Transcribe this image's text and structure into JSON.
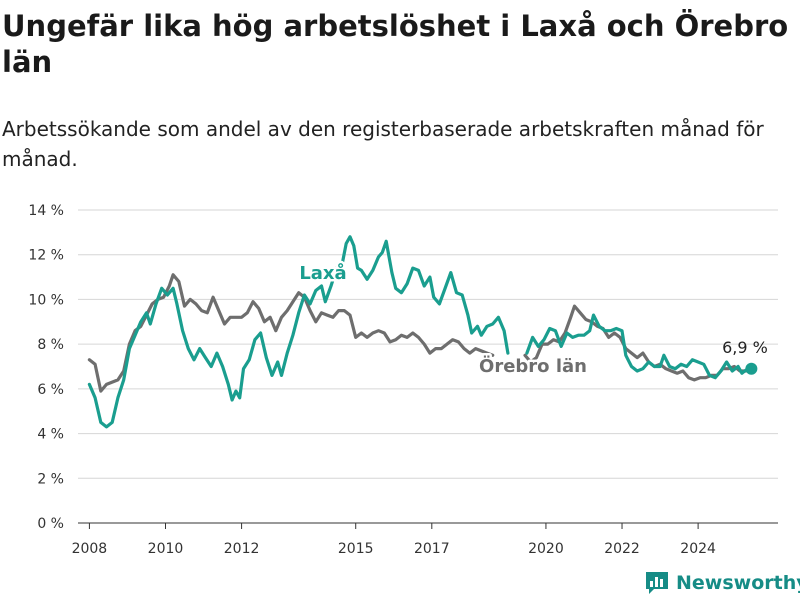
{
  "chart_data": {
    "type": "line",
    "title": "Ungefär lika hög arbetslöshet i Laxå och Örebro län",
    "subtitle": "Arbetssökande som andel av den registerbaserade arbetskraften månad för månad.",
    "xlabel": "",
    "ylabel": "",
    "ylim": [
      0,
      14
    ],
    "yticks": [
      0,
      2,
      4,
      6,
      8,
      10,
      12,
      14
    ],
    "ytick_labels": [
      "0 %",
      "2 %",
      "4 %",
      "6 %",
      "8 %",
      "10 %",
      "12 %",
      "14 %"
    ],
    "xlim": [
      2007.7,
      2026.1
    ],
    "xticks": [
      2008,
      2010,
      2012,
      2015,
      2017,
      2020,
      2022,
      2024
    ],
    "xtick_labels": [
      "2008",
      "2010",
      "2012",
      "2015",
      "2017",
      "2020",
      "2022",
      "2024"
    ],
    "grid": true,
    "legend": "inline labels",
    "series": [
      {
        "name": "Laxå",
        "color": "#1a9e8f",
        "points": [
          [
            2008.0,
            6.2
          ],
          [
            2008.15,
            5.6
          ],
          [
            2008.3,
            4.5
          ],
          [
            2008.45,
            4.3
          ],
          [
            2008.6,
            4.5
          ],
          [
            2008.75,
            5.6
          ],
          [
            2008.9,
            6.4
          ],
          [
            2009.05,
            7.8
          ],
          [
            2009.2,
            8.4
          ],
          [
            2009.35,
            9.0
          ],
          [
            2009.5,
            9.4
          ],
          [
            2009.6,
            8.9
          ],
          [
            2009.75,
            9.8
          ],
          [
            2009.9,
            10.5
          ],
          [
            2010.05,
            10.2
          ],
          [
            2010.2,
            10.5
          ],
          [
            2010.3,
            9.8
          ],
          [
            2010.45,
            8.6
          ],
          [
            2010.6,
            7.8
          ],
          [
            2010.75,
            7.3
          ],
          [
            2010.9,
            7.8
          ],
          [
            2011.05,
            7.4
          ],
          [
            2011.2,
            7.0
          ],
          [
            2011.35,
            7.6
          ],
          [
            2011.5,
            7.0
          ],
          [
            2011.65,
            6.2
          ],
          [
            2011.75,
            5.5
          ],
          [
            2011.85,
            5.9
          ],
          [
            2011.95,
            5.6
          ],
          [
            2012.05,
            6.9
          ],
          [
            2012.2,
            7.3
          ],
          [
            2012.35,
            8.2
          ],
          [
            2012.5,
            8.5
          ],
          [
            2012.65,
            7.4
          ],
          [
            2012.8,
            6.6
          ],
          [
            2012.95,
            7.2
          ],
          [
            2013.05,
            6.6
          ],
          [
            2013.2,
            7.6
          ],
          [
            2013.35,
            8.4
          ],
          [
            2013.5,
            9.4
          ],
          [
            2013.65,
            10.2
          ],
          [
            2013.8,
            9.8
          ],
          [
            2013.95,
            10.4
          ],
          [
            2014.1,
            10.6
          ],
          [
            2014.2,
            9.9
          ],
          [
            2014.35,
            10.6
          ],
          [
            2014.5,
            11.4
          ],
          [
            2014.6,
            11.2
          ],
          [
            2014.75,
            12.5
          ],
          [
            2014.85,
            12.8
          ],
          [
            2014.95,
            12.4
          ],
          [
            2015.05,
            11.4
          ],
          [
            2015.15,
            11.3
          ],
          [
            2015.3,
            10.9
          ],
          [
            2015.45,
            11.3
          ],
          [
            2015.6,
            11.9
          ],
          [
            2015.7,
            12.1
          ],
          [
            2015.8,
            12.6
          ],
          [
            2015.95,
            11.2
          ],
          [
            2016.05,
            10.5
          ],
          [
            2016.2,
            10.3
          ],
          [
            2016.35,
            10.7
          ],
          [
            2016.5,
            11.4
          ],
          [
            2016.65,
            11.3
          ],
          [
            2016.8,
            10.6
          ],
          [
            2016.95,
            11.0
          ],
          [
            2017.05,
            10.1
          ],
          [
            2017.2,
            9.8
          ],
          [
            2017.35,
            10.5
          ],
          [
            2017.5,
            11.2
          ],
          [
            2017.65,
            10.3
          ],
          [
            2017.8,
            10.2
          ],
          [
            2017.95,
            9.3
          ],
          [
            2018.05,
            8.5
          ],
          [
            2018.2,
            8.8
          ],
          [
            2018.3,
            8.4
          ],
          [
            2018.45,
            8.8
          ],
          [
            2018.6,
            8.9
          ],
          [
            2018.75,
            9.2
          ],
          [
            2018.9,
            8.6
          ],
          [
            2019.0,
            7.6
          ],
          null,
          [
            2019.5,
            7.6
          ],
          [
            2019.65,
            8.3
          ],
          [
            2019.8,
            7.9
          ],
          [
            2019.95,
            8.2
          ],
          [
            2020.1,
            8.7
          ],
          [
            2020.25,
            8.6
          ],
          [
            2020.4,
            7.9
          ],
          [
            2020.55,
            8.5
          ],
          [
            2020.7,
            8.3
          ],
          [
            2020.85,
            8.4
          ],
          [
            2021.0,
            8.4
          ],
          [
            2021.15,
            8.6
          ],
          [
            2021.25,
            9.3
          ],
          [
            2021.4,
            8.8
          ],
          [
            2021.55,
            8.6
          ],
          [
            2021.7,
            8.6
          ],
          [
            2021.85,
            8.7
          ],
          [
            2022.0,
            8.6
          ],
          [
            2022.1,
            7.5
          ],
          [
            2022.25,
            7.0
          ],
          [
            2022.4,
            6.8
          ],
          [
            2022.55,
            6.9
          ],
          [
            2022.7,
            7.2
          ],
          [
            2022.85,
            7.0
          ],
          [
            2023.0,
            7.0
          ],
          [
            2023.1,
            7.5
          ],
          [
            2023.25,
            7.0
          ],
          [
            2023.4,
            6.9
          ],
          [
            2023.55,
            7.1
          ],
          [
            2023.7,
            7.0
          ],
          [
            2023.85,
            7.3
          ],
          [
            2024.0,
            7.2
          ],
          [
            2024.15,
            7.1
          ],
          [
            2024.3,
            6.6
          ],
          [
            2024.45,
            6.5
          ],
          [
            2024.6,
            6.8
          ],
          [
            2024.75,
            7.2
          ],
          [
            2024.9,
            6.8
          ],
          [
            2025.05,
            7.0
          ],
          [
            2025.15,
            6.7
          ],
          [
            2025.3,
            6.9
          ],
          [
            2025.4,
            6.9
          ]
        ]
      },
      {
        "name": "Örebro län",
        "color": "#6e6e6e",
        "points": [
          [
            2008.0,
            7.3
          ],
          [
            2008.15,
            7.1
          ],
          [
            2008.3,
            5.9
          ],
          [
            2008.45,
            6.2
          ],
          [
            2008.6,
            6.3
          ],
          [
            2008.75,
            6.4
          ],
          [
            2008.9,
            6.8
          ],
          [
            2009.05,
            8.0
          ],
          [
            2009.2,
            8.6
          ],
          [
            2009.35,
            8.8
          ],
          [
            2009.5,
            9.3
          ],
          [
            2009.65,
            9.8
          ],
          [
            2009.8,
            10.0
          ],
          [
            2009.95,
            10.1
          ],
          [
            2010.1,
            10.6
          ],
          [
            2010.2,
            11.1
          ],
          [
            2010.35,
            10.8
          ],
          [
            2010.5,
            9.7
          ],
          [
            2010.65,
            10.0
          ],
          [
            2010.8,
            9.8
          ],
          [
            2010.95,
            9.5
          ],
          [
            2011.1,
            9.4
          ],
          [
            2011.25,
            10.1
          ],
          [
            2011.4,
            9.5
          ],
          [
            2011.55,
            8.9
          ],
          [
            2011.7,
            9.2
          ],
          [
            2011.85,
            9.2
          ],
          [
            2012.0,
            9.2
          ],
          [
            2012.15,
            9.4
          ],
          [
            2012.3,
            9.9
          ],
          [
            2012.45,
            9.6
          ],
          [
            2012.6,
            9.0
          ],
          [
            2012.75,
            9.2
          ],
          [
            2012.9,
            8.6
          ],
          [
            2013.05,
            9.2
          ],
          [
            2013.2,
            9.5
          ],
          [
            2013.35,
            9.9
          ],
          [
            2013.5,
            10.3
          ],
          [
            2013.65,
            10.1
          ],
          [
            2013.8,
            9.5
          ],
          [
            2013.95,
            9.0
          ],
          [
            2014.1,
            9.4
          ],
          [
            2014.25,
            9.3
          ],
          [
            2014.4,
            9.2
          ],
          [
            2014.55,
            9.5
          ],
          [
            2014.7,
            9.5
          ],
          [
            2014.85,
            9.3
          ],
          [
            2015.0,
            8.3
          ],
          [
            2015.15,
            8.5
          ],
          [
            2015.3,
            8.3
          ],
          [
            2015.45,
            8.5
          ],
          [
            2015.6,
            8.6
          ],
          [
            2015.75,
            8.5
          ],
          [
            2015.9,
            8.1
          ],
          [
            2016.05,
            8.2
          ],
          [
            2016.2,
            8.4
          ],
          [
            2016.35,
            8.3
          ],
          [
            2016.5,
            8.5
          ],
          [
            2016.65,
            8.3
          ],
          [
            2016.8,
            8.0
          ],
          [
            2016.95,
            7.6
          ],
          [
            2017.1,
            7.8
          ],
          [
            2017.25,
            7.8
          ],
          [
            2017.4,
            8.0
          ],
          [
            2017.55,
            8.2
          ],
          [
            2017.7,
            8.1
          ],
          [
            2017.85,
            7.8
          ],
          [
            2018.0,
            7.6
          ],
          [
            2018.15,
            7.8
          ],
          [
            2018.3,
            7.7
          ],
          [
            2018.45,
            7.6
          ],
          [
            2018.6,
            7.5
          ],
          null,
          [
            2019.45,
            7.5
          ],
          [
            2019.6,
            7.2
          ],
          [
            2019.75,
            7.4
          ],
          [
            2019.9,
            8.0
          ],
          [
            2020.05,
            8.0
          ],
          [
            2020.2,
            8.2
          ],
          [
            2020.35,
            8.1
          ],
          [
            2020.5,
            8.5
          ],
          [
            2020.65,
            9.2
          ],
          [
            2020.75,
            9.7
          ],
          [
            2020.9,
            9.4
          ],
          [
            2021.05,
            9.1
          ],
          [
            2021.2,
            9.0
          ],
          [
            2021.35,
            8.8
          ],
          [
            2021.5,
            8.7
          ],
          [
            2021.65,
            8.3
          ],
          [
            2021.8,
            8.5
          ],
          [
            2021.95,
            8.3
          ],
          [
            2022.1,
            7.8
          ],
          [
            2022.25,
            7.6
          ],
          [
            2022.4,
            7.4
          ],
          [
            2022.55,
            7.6
          ],
          [
            2022.7,
            7.2
          ],
          [
            2022.85,
            7.0
          ],
          [
            2023.0,
            7.1
          ],
          [
            2023.15,
            6.9
          ],
          [
            2023.3,
            6.8
          ],
          [
            2023.45,
            6.7
          ],
          [
            2023.6,
            6.8
          ],
          [
            2023.75,
            6.5
          ],
          [
            2023.9,
            6.4
          ],
          [
            2024.05,
            6.5
          ],
          [
            2024.2,
            6.5
          ],
          [
            2024.35,
            6.6
          ],
          [
            2024.5,
            6.6
          ],
          [
            2024.65,
            6.9
          ],
          [
            2024.8,
            6.9
          ],
          [
            2024.95,
            7.0
          ],
          [
            2025.1,
            6.8
          ],
          [
            2025.25,
            6.8
          ],
          [
            2025.4,
            6.9
          ]
        ]
      }
    ],
    "annotations": {
      "end_value_label": "6,9 %"
    }
  },
  "branding": {
    "name": "Newsworthy",
    "logo_icon": "bar-chart-speech-bubble-icon",
    "color": "#168c86"
  }
}
